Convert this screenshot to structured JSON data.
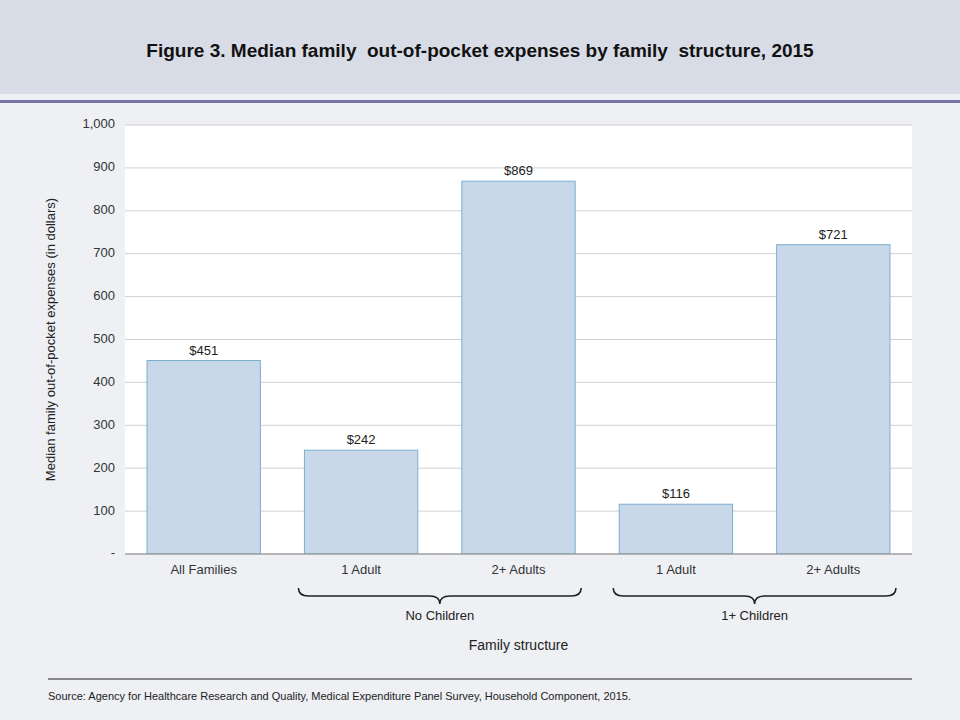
{
  "chart_data": {
    "type": "bar",
    "title": "Figure 3. Median family  out-of-pocket expenses by family  structure, 2015",
    "categories": [
      "All Families",
      "1 Adult",
      "2+ Adults",
      "1 Adult",
      "2+ Adults"
    ],
    "values": [
      451,
      242,
      869,
      116,
      721
    ],
    "value_labels": [
      "$451",
      "$242",
      "$869",
      "$116",
      "$721"
    ],
    "data_labels": true,
    "color": "#c8d8e8",
    "ylabel": "Median family out-of-pocket expenses (in dollars)",
    "xlabel": "Family structure",
    "ylim": [
      0,
      1000
    ],
    "yticks": [
      {
        "value": 0,
        "label": "-"
      },
      100,
      200,
      300,
      400,
      500,
      600,
      700,
      800,
      900,
      {
        "value": 1000,
        "label": "1,000"
      }
    ],
    "grid": true,
    "annotations": [
      "No Children",
      "1+ Children"
    ],
    "source": "Source: Agency for Healthcare Research and Quality, Medical Expenditure Panel Survey, Household Component, 2015."
  }
}
